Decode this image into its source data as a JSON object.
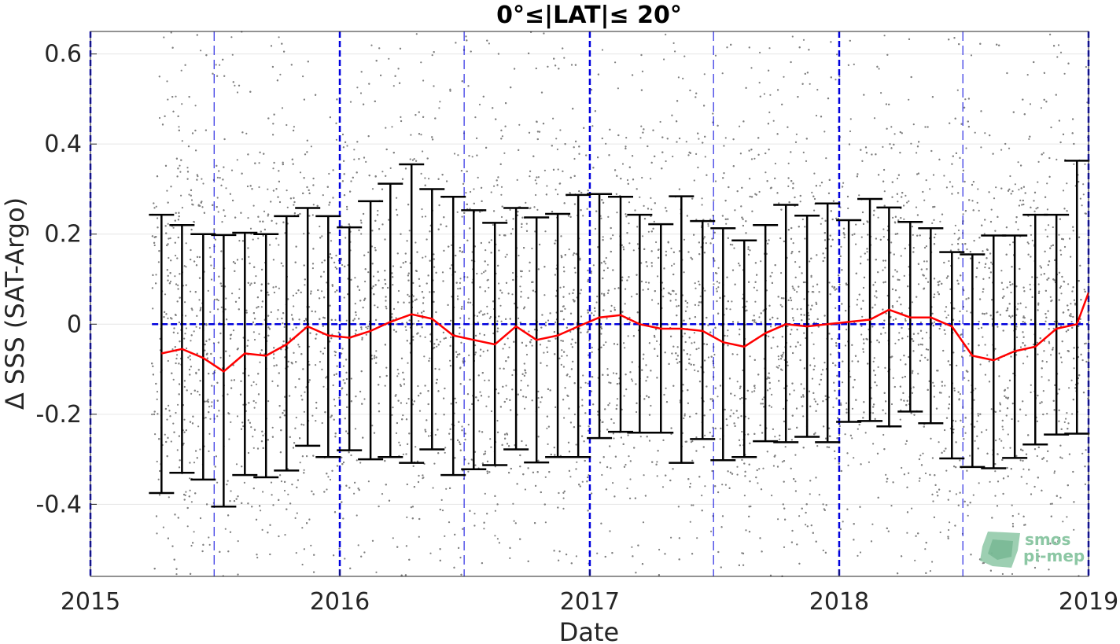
{
  "chart_data": {
    "type": "scatter",
    "title": "0°≤|LAT|≤ 20°",
    "xlabel": "Date",
    "ylabel": "Δ SSS (SAT-Argo)",
    "x_range": [
      "2015-01-01",
      "2019-01-01"
    ],
    "ylim": [
      -0.56,
      0.65
    ],
    "x_ticks": [
      "2015",
      "2016",
      "2017",
      "2018",
      "2019"
    ],
    "y_ticks": [
      {
        "value": 0.6,
        "label": "0.6"
      },
      {
        "value": 0.4,
        "label": "0.4"
      },
      {
        "value": 0.2,
        "label": "0.2"
      },
      {
        "value": 0,
        "label": "0"
      },
      {
        "value": -0.2,
        "label": "-0.2"
      },
      {
        "value": -0.4,
        "label": "-0.4"
      }
    ],
    "grid": true,
    "reference_lines": {
      "yearly_dates": [
        "2015-01-01",
        "2016-01-01",
        "2017-01-01",
        "2018-01-01",
        "2019-01-01"
      ],
      "midyear_dates": [
        "2015-07-01",
        "2016-07-01",
        "2017-07-01",
        "2018-07-01"
      ],
      "zero_line_from": "2015-04-01",
      "color": "#0000dd"
    },
    "scatter_series": {
      "name": "",
      "color": "#808080",
      "x_range": [
        "2015-04-01",
        "2019-01-01"
      ],
      "central_std": 0.22
    },
    "monthly_stats": {
      "x": [
        "2015-04-15",
        "2015-05-15",
        "2015-06-15",
        "2015-07-15",
        "2015-08-15",
        "2015-09-15",
        "2015-10-15",
        "2015-11-15",
        "2015-12-15",
        "2016-01-15",
        "2016-02-15",
        "2016-03-15",
        "2016-04-15",
        "2016-05-15",
        "2016-06-15",
        "2016-07-15",
        "2016-08-15",
        "2016-09-15",
        "2016-10-15",
        "2016-11-15",
        "2016-12-15",
        "2017-01-15",
        "2017-02-15",
        "2017-03-15",
        "2017-04-15",
        "2017-05-15",
        "2017-06-15",
        "2017-07-15",
        "2017-08-15",
        "2017-09-15",
        "2017-10-15",
        "2017-11-15",
        "2017-12-15",
        "2018-01-15",
        "2018-02-15",
        "2018-03-15",
        "2018-04-15",
        "2018-05-15",
        "2018-06-15",
        "2018-07-15",
        "2018-08-15",
        "2018-09-15",
        "2018-10-15",
        "2018-11-15",
        "2018-12-15"
      ],
      "mean": [
        -0.065,
        -0.055,
        -0.075,
        -0.105,
        -0.065,
        -0.07,
        -0.045,
        -0.005,
        -0.025,
        -0.03,
        -0.015,
        0.005,
        0.022,
        0.012,
        -0.025,
        -0.035,
        -0.045,
        -0.005,
        -0.035,
        -0.025,
        -0.005,
        0.015,
        0.02,
        0.0,
        -0.01,
        -0.01,
        -0.015,
        -0.04,
        -0.05,
        -0.02,
        0.0,
        -0.005,
        0.0,
        0.005,
        0.01,
        0.032,
        0.015,
        0.015,
        -0.005,
        -0.07,
        -0.08,
        -0.06,
        -0.05,
        -0.01,
        0.0
      ],
      "upper": [
        0.243,
        0.22,
        0.2,
        0.198,
        0.203,
        0.2,
        0.24,
        0.258,
        0.24,
        0.215,
        0.273,
        0.312,
        0.355,
        0.3,
        0.283,
        0.253,
        0.225,
        0.258,
        0.237,
        0.245,
        0.287,
        0.289,
        0.283,
        0.243,
        0.222,
        0.284,
        0.229,
        0.213,
        0.186,
        0.22,
        0.265,
        0.241,
        0.268,
        0.231,
        0.278,
        0.259,
        0.227,
        0.213,
        0.16,
        0.155,
        0.197,
        0.197,
        0.243,
        0.243,
        0.363
      ],
      "lower": [
        -0.375,
        -0.33,
        -0.345,
        -0.405,
        -0.335,
        -0.34,
        -0.325,
        -0.27,
        -0.295,
        -0.28,
        -0.3,
        -0.295,
        -0.308,
        -0.278,
        -0.335,
        -0.322,
        -0.313,
        -0.278,
        -0.307,
        -0.295,
        -0.295,
        -0.253,
        -0.239,
        -0.241,
        -0.241,
        -0.308,
        -0.255,
        -0.302,
        -0.295,
        -0.26,
        -0.262,
        -0.25,
        -0.262,
        -0.217,
        -0.215,
        -0.227,
        -0.194,
        -0.22,
        -0.298,
        -0.317,
        -0.32,
        -0.297,
        -0.267,
        -0.245,
        -0.243
      ],
      "mean_color": "#ff0000",
      "errorbar_color": "#000000"
    }
  },
  "logo": {
    "line1": "smos",
    "line2": "pi-mep"
  }
}
